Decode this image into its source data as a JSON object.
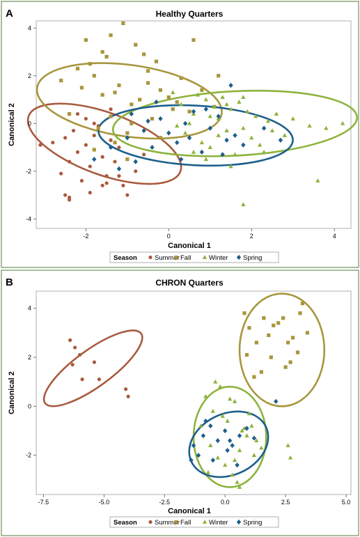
{
  "panels": [
    {
      "letter": "A",
      "chart_data": {
        "type": "scatter",
        "title": "Healthy Quarters",
        "xlabel": "Canonical 1",
        "ylabel": "Canonical 2",
        "xlim": [
          -3.2,
          4.4
        ],
        "ylim": [
          -4.4,
          4.3
        ],
        "xticks": [
          -2,
          0,
          2,
          4
        ],
        "xtick_labels": [
          "-2",
          "0",
          "2",
          "4"
        ],
        "yticks": [
          -4,
          -2,
          0,
          2,
          4
        ],
        "ytick_labels": [
          "-4",
          "-2",
          "0",
          "2",
          "4"
        ],
        "grid": false,
        "legend_title": "Season",
        "legend_position": "bottom",
        "series": [
          {
            "name": "Summer",
            "color": "#a85a3e",
            "marker": "circle",
            "x": [
              -2.4,
              -2.2,
              -2.0,
              -1.8,
              -2.3,
              -1.6,
              -1.4,
              -2.6,
              -2.1,
              -1.9,
              -1.5,
              -1.2,
              -2.5,
              -2.0,
              -1.7,
              -1.1,
              -2.8,
              -1.3,
              -0.8,
              -2.4,
              -1.9,
              -1.6,
              -1.0,
              -2.2,
              -1.4,
              -2.5,
              -2.4,
              -1.2,
              -1.8,
              -0.6,
              -3.1,
              -1.5
            ],
            "y": [
              -1.6,
              -1.2,
              -0.9,
              -0.5,
              -0.3,
              -1.4,
              -0.7,
              -2.1,
              -2.4,
              -1.8,
              -2.2,
              -1.0,
              -0.6,
              0.2,
              -0.1,
              -2.6,
              -0.8,
              -1.6,
              -2.0,
              -3.2,
              -2.9,
              -2.6,
              -3.0,
              0.4,
              0.6,
              -3.0,
              -3.1,
              -2.2,
              0.0,
              -1.3,
              -0.9,
              -2.5
            ]
          },
          {
            "name": "Fall",
            "color": "#a8963c",
            "marker": "square",
            "x": [
              -1.6,
              -1.2,
              -0.9,
              -0.5,
              -0.2,
              0.1,
              -1.8,
              -1.4,
              -1.0,
              -0.7,
              -0.3,
              0.3,
              0.5,
              -2.1,
              -1.5,
              -0.8,
              -0.4,
              0.0,
              -1.9,
              -1.3,
              -0.6,
              0.2,
              -2.4,
              -1.1,
              -0.5,
              -1.7,
              -1.3,
              -2.0,
              -0.9,
              0.8,
              1.1,
              -2.2,
              -1.6,
              0.6,
              -1.0,
              -0.2,
              -2.6,
              -1.8,
              1.2,
              -1.4
            ],
            "y": [
              1.2,
              1.6,
              0.8,
              2.2,
              1.4,
              0.6,
              2.0,
              0.3,
              -0.4,
              1.0,
              2.6,
              1.9,
              0.5,
              1.5,
              2.8,
              3.3,
              0.2,
              1.1,
              2.5,
              -0.8,
              2.9,
              0.9,
              0.4,
              4.2,
              1.7,
              -0.2,
              1.3,
              3.5,
              0.0,
              1.4,
              0.7,
              2.3,
              3.0,
              3.5,
              -1.5,
              -0.6,
              1.8,
              -1.1,
              2.0,
              3.7
            ]
          },
          {
            "name": "Winter",
            "color": "#8db33c",
            "marker": "triangle",
            "x": [
              0.3,
              0.6,
              0.9,
              1.2,
              1.5,
              1.8,
              2.1,
              0.4,
              0.8,
              1.1,
              1.4,
              1.7,
              2.0,
              2.4,
              0.2,
              0.7,
              1.0,
              1.3,
              1.6,
              1.9,
              2.2,
              2.6,
              0.5,
              1.2,
              1.8,
              2.5,
              3.0,
              3.4,
              3.8,
              4.2,
              0.9,
              1.5,
              2.3,
              0.1,
              0.6,
              1.0,
              1.4,
              2.8,
              1.8,
              3.6
            ],
            "y": [
              0.8,
              0.4,
              1.0,
              0.2,
              0.6,
              -0.2,
              0.3,
              -0.4,
              -0.8,
              0.7,
              -0.3,
              0.9,
              -0.6,
              0.1,
              -0.1,
              1.2,
              -1.0,
              1.1,
              -1.3,
              0.5,
              -0.9,
              0.4,
              0.0,
              -0.5,
              1.1,
              -0.3,
              0.2,
              -0.1,
              -0.2,
              0.0,
              -1.5,
              -1.8,
              -1.2,
              1.3,
              -1.2,
              0.3,
              0.8,
              -0.5,
              -3.4,
              -2.4
            ]
          },
          {
            "name": "Spring",
            "color": "#1d5f8c",
            "marker": "diamond",
            "x": [
              -1.4,
              -1.0,
              -0.6,
              -0.2,
              0.2,
              0.6,
              1.0,
              1.4,
              -0.8,
              -0.4,
              0.0,
              0.4,
              0.8,
              1.2,
              1.6,
              -1.2,
              -0.5,
              0.3,
              0.9,
              1.8,
              2.3,
              -0.9,
              0.5,
              1.3,
              -0.3,
              2.7,
              1.5,
              -1.8
            ],
            "y": [
              -1.0,
              -0.6,
              -0.3,
              0.2,
              -0.8,
              0.5,
              -0.2,
              -0.7,
              -1.6,
              -1.0,
              -0.4,
              0.0,
              -1.2,
              0.3,
              -0.5,
              -1.9,
              0.1,
              -1.5,
              0.6,
              -0.9,
              -0.2,
              0.4,
              -0.6,
              -1.3,
              0.9,
              -0.7,
              1.6,
              -1.5
            ]
          }
        ],
        "ellipses": [
          {
            "series": "Summer",
            "cx": -1.55,
            "cy": -0.85,
            "rx": 1.95,
            "ry": 1.3,
            "angle": 20
          },
          {
            "series": "Fall",
            "cx": -0.95,
            "cy": 0.95,
            "rx": 2.25,
            "ry": 1.5,
            "angle": 8
          },
          {
            "series": "Winter",
            "cx": 1.6,
            "cy": 0.0,
            "rx": 2.95,
            "ry": 1.35,
            "angle": -3
          },
          {
            "series": "Spring",
            "cx": 0.65,
            "cy": -0.5,
            "rx": 2.35,
            "ry": 1.25,
            "angle": 3
          }
        ]
      }
    },
    {
      "letter": "B",
      "chart_data": {
        "type": "scatter",
        "title": "CHRON Quarters",
        "xlabel": "Canonical 1",
        "ylabel": "Canonical 2",
        "xlim": [
          -7.8,
          5.2
        ],
        "ylim": [
          -3.6,
          4.7
        ],
        "xticks": [
          -7.5,
          -5.0,
          -2.5,
          0.0,
          2.5,
          5.0
        ],
        "xtick_labels": [
          "-7.5",
          "-5.0",
          "-2.5",
          "0.0",
          "2.5",
          "5.0"
        ],
        "yticks": [
          -2,
          0,
          2,
          4
        ],
        "ytick_labels": [
          "-2",
          "0",
          "2",
          "4"
        ],
        "grid": false,
        "legend_title": "Season",
        "legend_position": "bottom",
        "series": [
          {
            "name": "Summer",
            "color": "#a85a3e",
            "marker": "circle",
            "x": [
              -6.4,
              -6.2,
              -6.0,
              -6.3,
              -5.9,
              -5.4,
              -5.2,
              -4.1,
              -4.0
            ],
            "y": [
              2.7,
              2.4,
              2.1,
              1.7,
              1.1,
              1.8,
              1.1,
              0.7,
              0.4
            ]
          },
          {
            "name": "Fall",
            "color": "#a8963c",
            "marker": "square",
            "x": [
              0.8,
              1.0,
              1.3,
              1.6,
              1.9,
              2.2,
              2.5,
              2.8,
              3.1,
              3.4,
              1.2,
              1.8,
              2.4,
              3.0,
              0.9,
              2.0,
              2.7,
              1.5,
              2.6,
              3.2
            ],
            "y": [
              3.8,
              3.2,
              2.6,
              3.6,
              2.0,
              3.4,
              1.6,
              2.8,
              3.8,
              3.0,
              1.2,
              2.9,
              3.6,
              2.2,
              2.1,
              3.3,
              1.8,
              1.4,
              2.6,
              4.2
            ]
          },
          {
            "name": "Winter",
            "color": "#8db33c",
            "marker": "triangle",
            "x": [
              -0.8,
              -0.5,
              -0.2,
              0.1,
              0.4,
              0.7,
              1.0,
              1.3,
              -0.6,
              -0.3,
              0.0,
              0.3,
              0.6,
              0.9,
              1.2,
              -1.0,
              -0.4,
              0.2,
              0.8,
              1.5,
              -0.7,
              0.5,
              -0.1,
              1.1,
              0.6,
              2.6,
              2.7,
              0.4
            ],
            "y": [
              0.4,
              -0.2,
              0.8,
              -0.6,
              0.2,
              -1.0,
              -0.3,
              -1.4,
              -1.6,
              -2.1,
              -2.4,
              -2.8,
              -1.8,
              -1.2,
              -2.0,
              -0.8,
              1.0,
              0.3,
              -0.9,
              -1.7,
              -2.7,
              -3.1,
              -0.4,
              -0.8,
              -3.3,
              -1.6,
              -2.1,
              -2.2
            ]
          },
          {
            "name": "Spring",
            "color": "#1d5f8c",
            "marker": "diamond",
            "x": [
              -1.3,
              -0.9,
              -0.6,
              -0.3,
              0.0,
              0.3,
              0.6,
              0.9,
              -1.1,
              -0.5,
              0.1,
              0.5,
              1.2,
              -0.8,
              0.2,
              2.1,
              -1.4
            ],
            "y": [
              -1.6,
              -1.2,
              -0.8,
              -1.4,
              -1.0,
              -1.6,
              -1.2,
              -0.9,
              -2.0,
              -2.2,
              -1.8,
              -2.4,
              -1.3,
              -0.6,
              -1.4,
              0.2,
              -2.2
            ]
          }
        ],
        "ellipses": [
          {
            "series": "Summer",
            "cx": -5.45,
            "cy": 1.55,
            "rx": 2.45,
            "ry": 0.75,
            "angle": -36
          },
          {
            "series": "Fall",
            "cx": 2.35,
            "cy": 2.3,
            "rx": 1.75,
            "ry": 2.3,
            "angle": 0
          },
          {
            "series": "Winter",
            "cx": 0.2,
            "cy": -1.25,
            "rx": 1.5,
            "ry": 2.05,
            "angle": 0
          },
          {
            "series": "Spring",
            "cx": 0.15,
            "cy": -1.55,
            "rx": 1.7,
            "ry": 1.25,
            "angle": -25
          }
        ]
      }
    }
  ]
}
